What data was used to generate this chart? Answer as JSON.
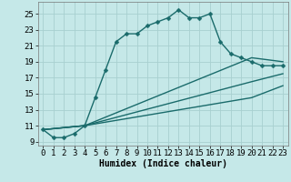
{
  "title": "",
  "xlabel": "Humidex (Indice chaleur)",
  "bg_color": "#c5e8e8",
  "grid_color": "#a8d0d0",
  "line_color": "#1a6b6b",
  "marker": "D",
  "markersize": 2.5,
  "linewidth": 1.0,
  "xlim": [
    -0.5,
    23.5
  ],
  "ylim": [
    8.5,
    26.5
  ],
  "yticks": [
    9,
    11,
    13,
    15,
    17,
    19,
    21,
    23,
    25
  ],
  "xticks": [
    0,
    1,
    2,
    3,
    4,
    5,
    6,
    7,
    8,
    9,
    10,
    11,
    12,
    13,
    14,
    15,
    16,
    17,
    18,
    19,
    20,
    21,
    22,
    23
  ],
  "lines": [
    {
      "x": [
        0,
        1,
        2,
        3,
        4,
        5,
        6,
        7,
        8,
        9,
        10,
        11,
        12,
        13,
        14,
        15,
        16,
        17,
        18,
        19,
        20,
        21,
        22,
        23
      ],
      "y": [
        10.5,
        9.5,
        9.5,
        10.0,
        11.0,
        14.5,
        18.0,
        21.5,
        22.5,
        22.5,
        23.5,
        24.0,
        24.5,
        25.5,
        24.5,
        24.5,
        25.0,
        21.5,
        20.0,
        19.5,
        19.0,
        18.5,
        18.5,
        18.5
      ],
      "markers": true
    },
    {
      "x": [
        0,
        4,
        20,
        23
      ],
      "y": [
        10.5,
        11.0,
        19.5,
        19.0
      ],
      "markers": false
    },
    {
      "x": [
        0,
        4,
        20,
        23
      ],
      "y": [
        10.5,
        11.0,
        16.5,
        17.5
      ],
      "markers": false
    },
    {
      "x": [
        0,
        4,
        20,
        23
      ],
      "y": [
        10.5,
        11.0,
        14.5,
        16.0
      ],
      "markers": false
    }
  ],
  "xlabel_fontsize": 7,
  "tick_fontsize": 6.5
}
